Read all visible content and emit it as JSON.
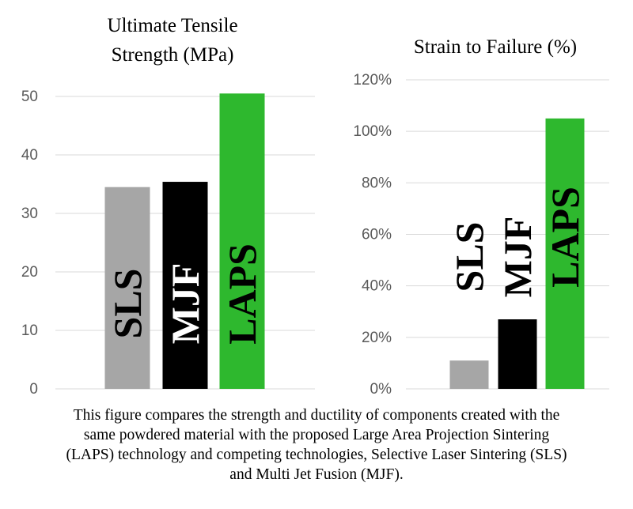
{
  "chart_data": [
    {
      "type": "bar",
      "title_lines": [
        "Ultimate Tensile",
        "Strength (MPa)"
      ],
      "categories": [
        "SLS",
        "MJF",
        "LAPS"
      ],
      "values": [
        34.5,
        35.4,
        50.5
      ],
      "bar_labels": [
        "SLS",
        "MJF",
        "LAPS"
      ],
      "colors": [
        "#a6a6a6",
        "#000000",
        "#2eb82e"
      ],
      "label_colors": [
        "#000000",
        "#ffffff",
        "#000000"
      ],
      "yticks": [
        "0",
        "10",
        "20",
        "30",
        "40",
        "50"
      ],
      "ytick_values": [
        0,
        10,
        20,
        30,
        40,
        50
      ],
      "ylim": [
        0,
        50
      ],
      "grid": true,
      "legend": "none"
    },
    {
      "type": "bar",
      "title_lines": [
        "Strain to Failure (%)"
      ],
      "categories": [
        "SLS",
        "MJF",
        "LAPS"
      ],
      "values": [
        11,
        27,
        105
      ],
      "bar_labels": [
        "SLS",
        "MJF",
        "LAPS"
      ],
      "colors": [
        "#a6a6a6",
        "#000000",
        "#2eb82e"
      ],
      "label_colors": [
        "#000000",
        "#000000",
        "#000000"
      ],
      "yticks": [
        "0%",
        "20%",
        "40%",
        "60%",
        "80%",
        "100%",
        "120%"
      ],
      "ytick_values": [
        0,
        20,
        40,
        60,
        80,
        100,
        120
      ],
      "ylim": [
        0,
        120
      ],
      "grid": true,
      "legend": "none"
    }
  ],
  "caption": {
    "lines": [
      "This figure compares the strength and ductility of components created with the",
      "same powdered material with the proposed Large Area Projection Sintering",
      "(LAPS) technology and competing technologies, Selective Laser Sintering (SLS)",
      "and Multi Jet Fusion (MJF)."
    ]
  }
}
